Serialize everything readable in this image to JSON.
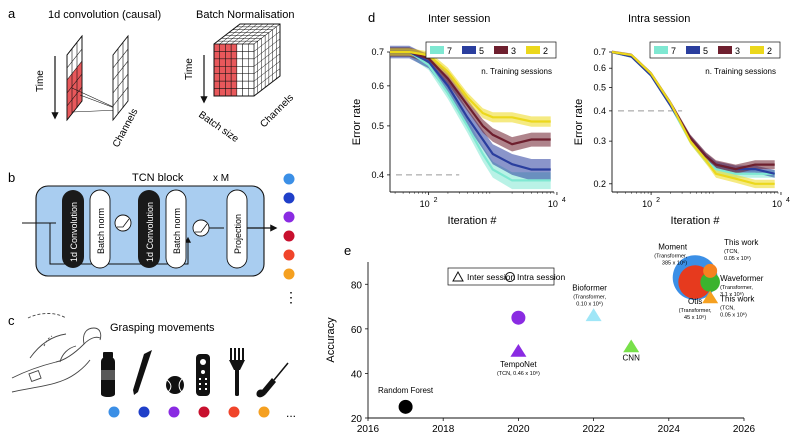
{
  "panel_letters": {
    "a": "a",
    "b": "b",
    "c": "c",
    "d": "d",
    "e": "e"
  },
  "panel_a": {
    "conv_title": "1d convolution (causal)",
    "bn_title": "Batch Normalisation",
    "time_label": "Time",
    "channels_label": "Channels",
    "batch_size_label": "Batch size",
    "highlight_color": "#e8585b"
  },
  "panel_b": {
    "block_title": "TCN block",
    "repeat_label": "x M",
    "conv_label": "1d Convolution",
    "bn_label": "Batch norm",
    "projection_label": "Projection",
    "ellipsis": "⋮",
    "block_fill": "#a9cdf0",
    "output_dot_colors": [
      "#3b8fe6",
      "#1f3fc9",
      "#8a2be2",
      "#c8102e",
      "#f0442a",
      "#f5a020"
    ]
  },
  "panel_c": {
    "title": "Grasping movements",
    "objects": [
      "bottle-icon",
      "pen-icon",
      "ball-icon",
      "remote-icon",
      "fork-icon",
      "screwdriver-icon"
    ],
    "dot_colors": [
      "#3b8fe6",
      "#1f3fc9",
      "#8a2be2",
      "#c8102e",
      "#f0442a",
      "#f5a020"
    ],
    "ellipsis": "..."
  },
  "chart_data": [
    {
      "type": "line",
      "title": "Inter session",
      "xlabel": "Iteration #",
      "ylabel": "Error rate",
      "xscale": "log",
      "yscale": "log",
      "xlim": [
        25,
        9000
      ],
      "ylim": [
        0.37,
        0.7
      ],
      "xticks": [
        "10 2",
        "10 4"
      ],
      "yticks": [
        "0.7",
        "0.6",
        "0.5",
        "0.4"
      ],
      "legend_title": "n. Training sessions",
      "legend_position": "top-right",
      "baseline": 0.4,
      "series": [
        {
          "name": "7",
          "color": "#7fe8d2",
          "x": [
            25,
            50,
            100,
            200,
            400,
            700,
            1000,
            2000,
            4000,
            8000
          ],
          "y": [
            0.7,
            0.7,
            0.66,
            0.58,
            0.5,
            0.44,
            0.41,
            0.39,
            0.39,
            0.39
          ],
          "band": 0.015
        },
        {
          "name": "5",
          "color": "#2a3e9e",
          "x": [
            25,
            50,
            100,
            200,
            400,
            700,
            1000,
            2000,
            4000,
            8000
          ],
          "y": [
            0.7,
            0.7,
            0.67,
            0.6,
            0.52,
            0.47,
            0.44,
            0.42,
            0.41,
            0.41
          ],
          "band": 0.02
        },
        {
          "name": "3",
          "color": "#6e1f2e",
          "x": [
            25,
            50,
            100,
            200,
            400,
            700,
            1000,
            2000,
            4000,
            8000
          ],
          "y": [
            0.7,
            0.7,
            0.68,
            0.62,
            0.55,
            0.5,
            0.48,
            0.46,
            0.47,
            0.47
          ],
          "band": 0.015
        },
        {
          "name": "2",
          "color": "#ecd81c",
          "x": [
            25,
            50,
            100,
            200,
            400,
            700,
            1000,
            2000,
            4000,
            8000
          ],
          "y": [
            0.7,
            0.7,
            0.69,
            0.64,
            0.57,
            0.53,
            0.52,
            0.52,
            0.51,
            0.51
          ],
          "band": 0.012
        }
      ]
    },
    {
      "type": "line",
      "title": "Intra session",
      "xlabel": "Iteration #",
      "ylabel": "Error rate",
      "xscale": "log",
      "yscale": "log",
      "xlim": [
        25,
        9000
      ],
      "ylim": [
        0.185,
        0.7
      ],
      "xticks": [
        "10 2",
        "10 4"
      ],
      "yticks": [
        "0.7",
        "0.6",
        "0.5",
        "0.4",
        "0.3",
        "0.2"
      ],
      "legend_title": "n. Training sessions",
      "legend_position": "top-right",
      "baseline": 0.4,
      "series": [
        {
          "name": "7",
          "color": "#7fe8d2",
          "x": [
            25,
            50,
            100,
            200,
            400,
            700,
            1000,
            2000,
            4000,
            8000
          ],
          "y": [
            0.7,
            0.67,
            0.56,
            0.42,
            0.3,
            0.25,
            0.23,
            0.22,
            0.22,
            0.22
          ],
          "band": 0.008
        },
        {
          "name": "5",
          "color": "#2a3e9e",
          "x": [
            25,
            50,
            100,
            200,
            400,
            700,
            1000,
            2000,
            4000,
            8000
          ],
          "y": [
            0.7,
            0.67,
            0.56,
            0.42,
            0.31,
            0.26,
            0.24,
            0.23,
            0.23,
            0.22
          ],
          "band": 0.008
        },
        {
          "name": "3",
          "color": "#6e1f2e",
          "x": [
            25,
            50,
            100,
            200,
            400,
            700,
            1000,
            2000,
            4000,
            8000
          ],
          "y": [
            0.7,
            0.68,
            0.57,
            0.43,
            0.31,
            0.26,
            0.24,
            0.23,
            0.24,
            0.24
          ],
          "band": 0.01
        },
        {
          "name": "2",
          "color": "#ecd81c",
          "x": [
            25,
            50,
            100,
            200,
            400,
            700,
            1000,
            2000,
            4000,
            8000
          ],
          "y": [
            0.7,
            0.68,
            0.57,
            0.43,
            0.3,
            0.25,
            0.22,
            0.21,
            0.2,
            0.2
          ],
          "band": 0.008
        }
      ]
    },
    {
      "type": "scatter",
      "ylabel": "Accuracy",
      "xlim": [
        2016,
        2026
      ],
      "ylim": [
        20,
        90
      ],
      "xticks": [
        "2016",
        "2018",
        "2020",
        "2022",
        "2024",
        "2026"
      ],
      "yticks": [
        "20",
        "40",
        "60",
        "80"
      ],
      "legend": [
        {
          "marker": "triangle",
          "label": "Inter session"
        },
        {
          "marker": "circle",
          "label": "Intra session"
        }
      ],
      "legend_position": "top-left",
      "points": [
        {
          "label": "Random Forest",
          "sub": [],
          "x": 2017,
          "y": 25,
          "marker": "circle",
          "color": "#000000",
          "size": 1
        },
        {
          "label": "TempoNet",
          "sub": [
            "(TCN, 0.46 x 10⁶)"
          ],
          "x": 2020,
          "y": 50,
          "marker": "triangle",
          "color": "#8a2be2",
          "size": 1
        },
        {
          "label": "",
          "sub": [],
          "x": 2020,
          "y": 65,
          "marker": "circle",
          "color": "#8a2be2",
          "size": 1
        },
        {
          "label": "Bioformer",
          "sub": [
            "(Transformer,",
            "0.10 x 10⁶)"
          ],
          "x": 2022,
          "y": 66,
          "marker": "triangle",
          "color": "#9fe6f7",
          "size": 1
        },
        {
          "label": "CNN",
          "sub": [],
          "x": 2023,
          "y": 52,
          "marker": "triangle",
          "color": "#78e04a",
          "size": 1
        },
        {
          "label": "Moment",
          "sub": [
            "(Transformer,",
            "385 x 10⁶)"
          ],
          "x": 2024.7,
          "y": 83,
          "marker": "circle",
          "color": "#3b8fe6",
          "size": 3.2
        },
        {
          "label": "Otis",
          "sub": [
            "(Transformer,",
            "45 x 10⁶)"
          ],
          "x": 2024.7,
          "y": 81,
          "marker": "circle",
          "color": "#e63a1e",
          "size": 2.4
        },
        {
          "label": "This work",
          "sub": [
            "(TCN,",
            "0.05 x 10⁶)"
          ],
          "x": 2025.1,
          "y": 86,
          "marker": "circle",
          "color": "#f58220",
          "size": 1
        },
        {
          "label": "Waveformer",
          "sub": [
            "(Transformer,",
            "3.1 x 10⁶)"
          ],
          "x": 2025.1,
          "y": 81,
          "marker": "circle",
          "color": "#3bb32e",
          "size": 1.4
        },
        {
          "label": "This work",
          "sub": [
            "(TCN,",
            "0.05 x 10⁶)"
          ],
          "x": 2025.1,
          "y": 74,
          "marker": "triangle",
          "color": "#f5a020",
          "size": 1
        }
      ]
    }
  ]
}
